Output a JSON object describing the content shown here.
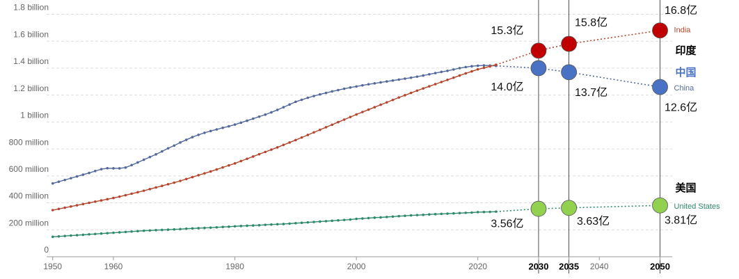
{
  "chart_data": {
    "type": "line",
    "xlim": [
      1949,
      2052
    ],
    "ylim": [
      0,
      1880
    ],
    "xticks": [
      1950,
      1960,
      1980,
      2000,
      2020,
      2030,
      2035,
      2040,
      2050
    ],
    "yticks": [
      0,
      {
        "value": 200,
        "label": "200 million"
      },
      {
        "value": 400,
        "label": "400 million"
      },
      {
        "value": 600,
        "label": "600 million"
      },
      {
        "value": 800,
        "label": "800 million"
      },
      {
        "value": 1000,
        "label": "1 billion"
      },
      {
        "value": 1200,
        "label": "1.2 billion"
      },
      {
        "value": 1400,
        "label": "1.4 billion"
      },
      {
        "value": 1600,
        "label": "1.6 billion"
      },
      {
        "value": 1800,
        "label": "1.8 billion"
      }
    ],
    "grid": true,
    "x": [
      1950,
      1951,
      1952,
      1953,
      1954,
      1955,
      1956,
      1957,
      1958,
      1959,
      1960,
      1961,
      1962,
      1963,
      1964,
      1965,
      1966,
      1967,
      1968,
      1969,
      1970,
      1971,
      1972,
      1973,
      1974,
      1975,
      1976,
      1977,
      1978,
      1979,
      1980,
      1981,
      1982,
      1983,
      1984,
      1985,
      1986,
      1987,
      1988,
      1989,
      1990,
      1991,
      1992,
      1993,
      1994,
      1995,
      1996,
      1997,
      1998,
      1999,
      2000,
      2001,
      2002,
      2003,
      2004,
      2005,
      2006,
      2007,
      2008,
      2009,
      2010,
      2011,
      2012,
      2013,
      2014,
      2015,
      2016,
      2017,
      2018,
      2019,
      2020,
      2021,
      2022,
      2023
    ],
    "series": [
      {
        "name": "China",
        "name_zh": "中国",
        "color": "#53699b",
        "marker_color": "#4a72c4",
        "values": [
          544,
          557,
          570,
          583,
          596,
          609,
          622,
          636,
          650,
          657,
          656,
          656,
          662,
          680,
          700,
          720,
          740,
          760,
          782,
          805,
          825,
          848,
          868,
          888,
          905,
          920,
          933,
          945,
          957,
          968,
          981,
          995,
          1010,
          1025,
          1040,
          1055,
          1072,
          1090,
          1110,
          1130,
          1150,
          1165,
          1180,
          1193,
          1205,
          1216,
          1227,
          1237,
          1247,
          1256,
          1264,
          1272,
          1280,
          1287,
          1294,
          1301,
          1308,
          1315,
          1322,
          1329,
          1337,
          1345,
          1354,
          1363,
          1372,
          1380,
          1390,
          1400,
          1408,
          1414,
          1418,
          1420,
          1419,
          1417
        ],
        "projection": {
          "x": [
            2030,
            2035,
            2050
          ],
          "values": [
            1400,
            1370,
            1260
          ],
          "value_labels": [
            "14.0亿",
            "13.7亿",
            "12.6亿"
          ]
        }
      },
      {
        "name": "India",
        "name_zh": "印度",
        "color": "#b5452c",
        "marker_color": "#c00000",
        "values": [
          346,
          355,
          364,
          373,
          382,
          391,
          400,
          409,
          418,
          427,
          436,
          446,
          457,
          468,
          479,
          490,
          502,
          514,
          526,
          538,
          550,
          563,
          577,
          591,
          605,
          619,
          633,
          648,
          663,
          678,
          693,
          710,
          727,
          744,
          761,
          778,
          795,
          812,
          830,
          848,
          866,
          885,
          904,
          923,
          942,
          961,
          980,
          999,
          1018,
          1037,
          1056,
          1074,
          1092,
          1110,
          1128,
          1146,
          1164,
          1182,
          1199,
          1216,
          1233,
          1249,
          1265,
          1281,
          1297,
          1313,
          1329,
          1345,
          1361,
          1376,
          1391,
          1402,
          1413,
          1425
        ],
        "projection": {
          "x": [
            2030,
            2035,
            2050
          ],
          "values": [
            1530,
            1580,
            1680
          ],
          "value_labels": [
            "15.3亿",
            "15.8亿",
            "16.8亿"
          ]
        }
      },
      {
        "name": "United States",
        "name_zh": "美国",
        "color": "#2e8b6a",
        "marker_color": "#92d050",
        "values": [
          148,
          151,
          154,
          157,
          160,
          163,
          166,
          169,
          172,
          175,
          178,
          181,
          184,
          187,
          190,
          193,
          195,
          197,
          199,
          201,
          203,
          205,
          208,
          210,
          212,
          214,
          216,
          218,
          221,
          223,
          226,
          228,
          230,
          232,
          234,
          237,
          239,
          241,
          243,
          246,
          249,
          252,
          255,
          258,
          261,
          264,
          267,
          270,
          273,
          276,
          281,
          284,
          287,
          290,
          292,
          295,
          298,
          301,
          304,
          307,
          309,
          311,
          314,
          316,
          318,
          320,
          322,
          324,
          326,
          328,
          331,
          332,
          333,
          335
        ],
        "projection": {
          "x": [
            2030,
            2035,
            2050
          ],
          "values": [
            356,
            363,
            381
          ],
          "value_labels": [
            "3.56亿",
            "3.63亿",
            "3.81亿"
          ]
        }
      }
    ]
  }
}
